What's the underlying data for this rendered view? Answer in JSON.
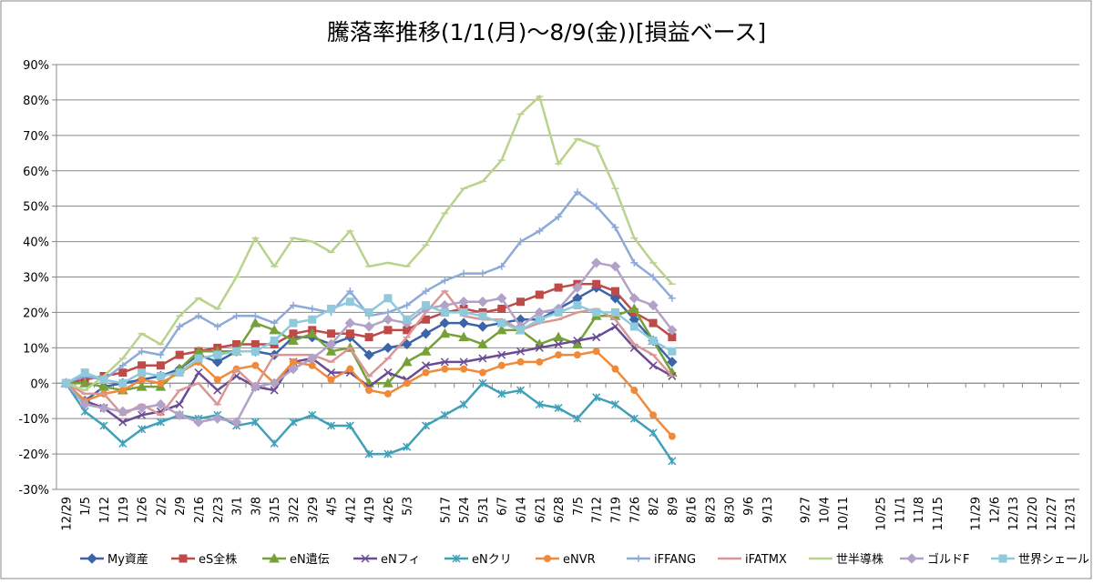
{
  "chart_data": {
    "type": "line",
    "title": "騰落率推移(1/1(月)～8/9(金))[損益ベース]",
    "categories": [
      "12/29",
      "1/5",
      "1/12",
      "1/19",
      "1/26",
      "2/2",
      "2/9",
      "2/16",
      "2/23",
      "3/1",
      "3/8",
      "3/15",
      "3/22",
      "3/29",
      "4/5",
      "4/12",
      "4/19",
      "4/26",
      "5/3",
      null,
      "5/17",
      "5/24",
      "5/31",
      "6/7",
      "6/14",
      "6/21",
      "6/28",
      "7/5",
      "7/12",
      "7/19",
      "7/26",
      "8/2",
      "8/9",
      "8/16",
      "8/23",
      "8/30",
      "9/6",
      "9/13",
      null,
      "9/27",
      "10/4",
      "10/11",
      null,
      "10/25",
      "11/1",
      "11/8",
      "11/15",
      null,
      "11/29",
      "12/6",
      "12/13",
      "12/20",
      "12/27",
      "12/31"
    ],
    "ylim": [
      -30,
      90
    ],
    "yticks": [
      {
        "value": -30,
        "label": "-30%"
      },
      {
        "value": -20,
        "label": "-20%"
      },
      {
        "value": -10,
        "label": "-10%"
      },
      {
        "value": 0,
        "label": "0%"
      },
      {
        "value": 10,
        "label": "10%"
      },
      {
        "value": 20,
        "label": "20%"
      },
      {
        "value": 30,
        "label": "30%"
      },
      {
        "value": 40,
        "label": "40%"
      },
      {
        "value": 50,
        "label": "50%"
      },
      {
        "value": 60,
        "label": "60%"
      },
      {
        "value": 70,
        "label": "70%"
      },
      {
        "value": 80,
        "label": "80%"
      },
      {
        "value": 90,
        "label": "90%"
      }
    ],
    "grid": true,
    "legend": "bottom",
    "series": [
      {
        "name": "My資産",
        "color": "#3c64a8",
        "marker": "diamond",
        "values": [
          0,
          -5,
          -1,
          0,
          1,
          2,
          4,
          8,
          6,
          9,
          9,
          8,
          13,
          13,
          11,
          13,
          8,
          10,
          11,
          14,
          17,
          17,
          16,
          17,
          18,
          18,
          21,
          24,
          27,
          24,
          18,
          12,
          6,
          null,
          null,
          null,
          null,
          null,
          null,
          null,
          null,
          null,
          null,
          null,
          null,
          null,
          null,
          null,
          null,
          null,
          null,
          null,
          null,
          null
        ]
      },
      {
        "name": "eS全株",
        "color": "#be4b48",
        "marker": "square",
        "values": [
          0,
          1,
          2,
          3,
          5,
          5,
          8,
          9,
          10,
          11,
          11,
          11,
          14,
          15,
          14,
          14,
          13,
          15,
          15,
          18,
          20,
          21,
          20,
          21,
          23,
          25,
          27,
          28,
          28,
          26,
          20,
          17,
          13,
          null,
          null,
          null,
          null,
          null,
          null,
          null,
          null,
          null,
          null,
          null,
          null,
          null,
          null,
          null,
          null,
          null,
          null,
          null,
          null,
          null
        ]
      },
      {
        "name": "eN遺伝",
        "color": "#77a03a",
        "marker": "triangle",
        "values": [
          0,
          0,
          -1,
          -2,
          -1,
          -1,
          4,
          9,
          9,
          9,
          17,
          15,
          12,
          14,
          9,
          10,
          0,
          0,
          6,
          9,
          14,
          13,
          11,
          15,
          15,
          11,
          13,
          11,
          19,
          19,
          21,
          12,
          3,
          null,
          null,
          null,
          null,
          null,
          null,
          null,
          null,
          null,
          null,
          null,
          null,
          null,
          null,
          null,
          null,
          null,
          null,
          null,
          null,
          null
        ]
      },
      {
        "name": "eNフィ",
        "color": "#6a4c93",
        "marker": "x",
        "values": [
          0,
          -5,
          -7,
          -11,
          -9,
          -8,
          -6,
          3,
          -2,
          2,
          -1,
          -2,
          6,
          7,
          3,
          3,
          -1,
          3,
          1,
          5,
          6,
          6,
          7,
          8,
          9,
          10,
          11,
          12,
          13,
          16,
          10,
          5,
          2,
          null,
          null,
          null,
          null,
          null,
          null,
          null,
          null,
          null,
          null,
          null,
          null,
          null,
          null,
          null,
          null,
          null,
          null,
          null,
          null,
          null
        ]
      },
      {
        "name": "eNクリ",
        "color": "#3fa0b8",
        "marker": "star",
        "values": [
          0,
          -8,
          -12,
          -17,
          -13,
          -11,
          -9,
          -10,
          -9,
          -12,
          -11,
          -17,
          -11,
          -9,
          -12,
          -12,
          -20,
          -20,
          -18,
          -12,
          -9,
          -6,
          0,
          -3,
          -2,
          -6,
          -7,
          -10,
          -4,
          -6,
          -10,
          -14,
          -22,
          null,
          null,
          null,
          null,
          null,
          null,
          null,
          null,
          null,
          null,
          null,
          null,
          null,
          null,
          null,
          null,
          null,
          null,
          null,
          null,
          null
        ]
      },
      {
        "name": "eNVR",
        "color": "#f08a3a",
        "marker": "circle",
        "values": [
          0,
          -5,
          -3,
          -2,
          1,
          0,
          3,
          6,
          1,
          4,
          5,
          0,
          6,
          5,
          1,
          4,
          -2,
          -3,
          0,
          3,
          4,
          4,
          3,
          5,
          6,
          6,
          8,
          8,
          9,
          4,
          -2,
          -9,
          -15,
          null,
          null,
          null,
          null,
          null,
          null,
          null,
          null,
          null,
          null,
          null,
          null,
          null,
          null,
          null,
          null,
          null,
          null,
          null,
          null,
          null
        ]
      },
      {
        "name": "iFFANG",
        "color": "#8eaad6",
        "marker": "plus",
        "values": [
          0,
          2,
          1,
          5,
          9,
          8,
          16,
          19,
          16,
          19,
          19,
          17,
          22,
          21,
          20,
          26,
          19,
          20,
          22,
          26,
          29,
          31,
          31,
          33,
          40,
          43,
          47,
          54,
          50,
          44,
          34,
          30,
          24,
          null,
          null,
          null,
          null,
          null,
          null,
          null,
          null,
          null,
          null,
          null,
          null,
          null,
          null,
          null,
          null,
          null,
          null,
          null,
          null,
          null
        ]
      },
      {
        "name": "iFATMX",
        "color": "#d99694",
        "marker": "dash",
        "values": [
          0,
          -3,
          -3,
          -9,
          -6,
          -9,
          -2,
          0,
          -6,
          4,
          -1,
          8,
          8,
          8,
          6,
          10,
          2,
          7,
          13,
          20,
          26,
          19,
          18,
          18,
          15,
          17,
          18,
          20,
          21,
          18,
          11,
          8,
          2,
          null,
          null,
          null,
          null,
          null,
          null,
          null,
          null,
          null,
          null,
          null,
          null,
          null,
          null,
          null,
          null,
          null,
          null,
          null,
          null,
          null
        ]
      },
      {
        "name": "世半導株",
        "color": "#b9d38c",
        "marker": "dash",
        "values": [
          0,
          -2,
          2,
          7,
          14,
          11,
          19,
          24,
          21,
          30,
          41,
          33,
          41,
          40,
          37,
          43,
          33,
          34,
          33,
          39,
          48,
          55,
          57,
          63,
          76,
          81,
          62,
          69,
          67,
          55,
          41,
          34,
          28,
          null,
          null,
          null,
          null,
          null,
          null,
          null,
          null,
          null,
          null,
          null,
          null,
          null,
          null,
          null,
          null,
          null,
          null,
          null,
          null,
          null
        ]
      },
      {
        "name": "ゴルドF",
        "color": "#b3a2c7",
        "marker": "diamond",
        "values": [
          0,
          -6,
          -7,
          -8,
          -7,
          -6,
          -9,
          -11,
          -10,
          -11,
          -1,
          0,
          4,
          7,
          11,
          17,
          16,
          18,
          17,
          21,
          22,
          23,
          23,
          24,
          16,
          20,
          21,
          27,
          34,
          33,
          24,
          22,
          15,
          null,
          null,
          null,
          null,
          null,
          null,
          null,
          null,
          null,
          null,
          null,
          null,
          null,
          null,
          null,
          null,
          null,
          null,
          null,
          null,
          null
        ]
      },
      {
        "name": "世界シェール",
        "color": "#8fcadc",
        "marker": "square",
        "values": [
          0,
          3,
          1,
          0,
          3,
          2,
          3,
          7,
          8,
          9,
          9,
          12,
          17,
          18,
          21,
          23,
          20,
          24,
          18,
          22,
          20,
          20,
          19,
          17,
          15,
          18,
          20,
          22,
          20,
          20,
          16,
          12,
          9,
          null,
          null,
          null,
          null,
          null,
          null,
          null,
          null,
          null,
          null,
          null,
          null,
          null,
          null,
          null,
          null,
          null,
          null,
          null,
          null,
          null
        ]
      }
    ]
  }
}
